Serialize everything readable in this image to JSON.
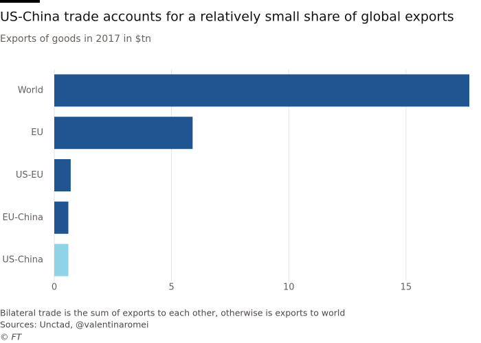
{
  "chart_data": {
    "type": "bar",
    "orientation": "horizontal",
    "title": "US-China trade accounts for a relatively small share of global exports",
    "subtitle": "Exports of goods in 2017 in $tn",
    "categories": [
      "World",
      "EU",
      "US-EU",
      "EU-China",
      "US-China"
    ],
    "values": [
      17.7,
      5.9,
      0.7,
      0.6,
      0.6
    ],
    "colors": [
      "#1f5590",
      "#1f5590",
      "#1f5590",
      "#1f5590",
      "#8fd3e6"
    ],
    "xlim": [
      0,
      17.7
    ],
    "xticks": [
      0,
      5,
      10,
      15
    ],
    "grid": true,
    "note": "Bilateral trade is the sum of exports to each other, otherwise is exports to world",
    "source": "Sources: Unctad, @valentinaromei",
    "credit": "© FT"
  }
}
